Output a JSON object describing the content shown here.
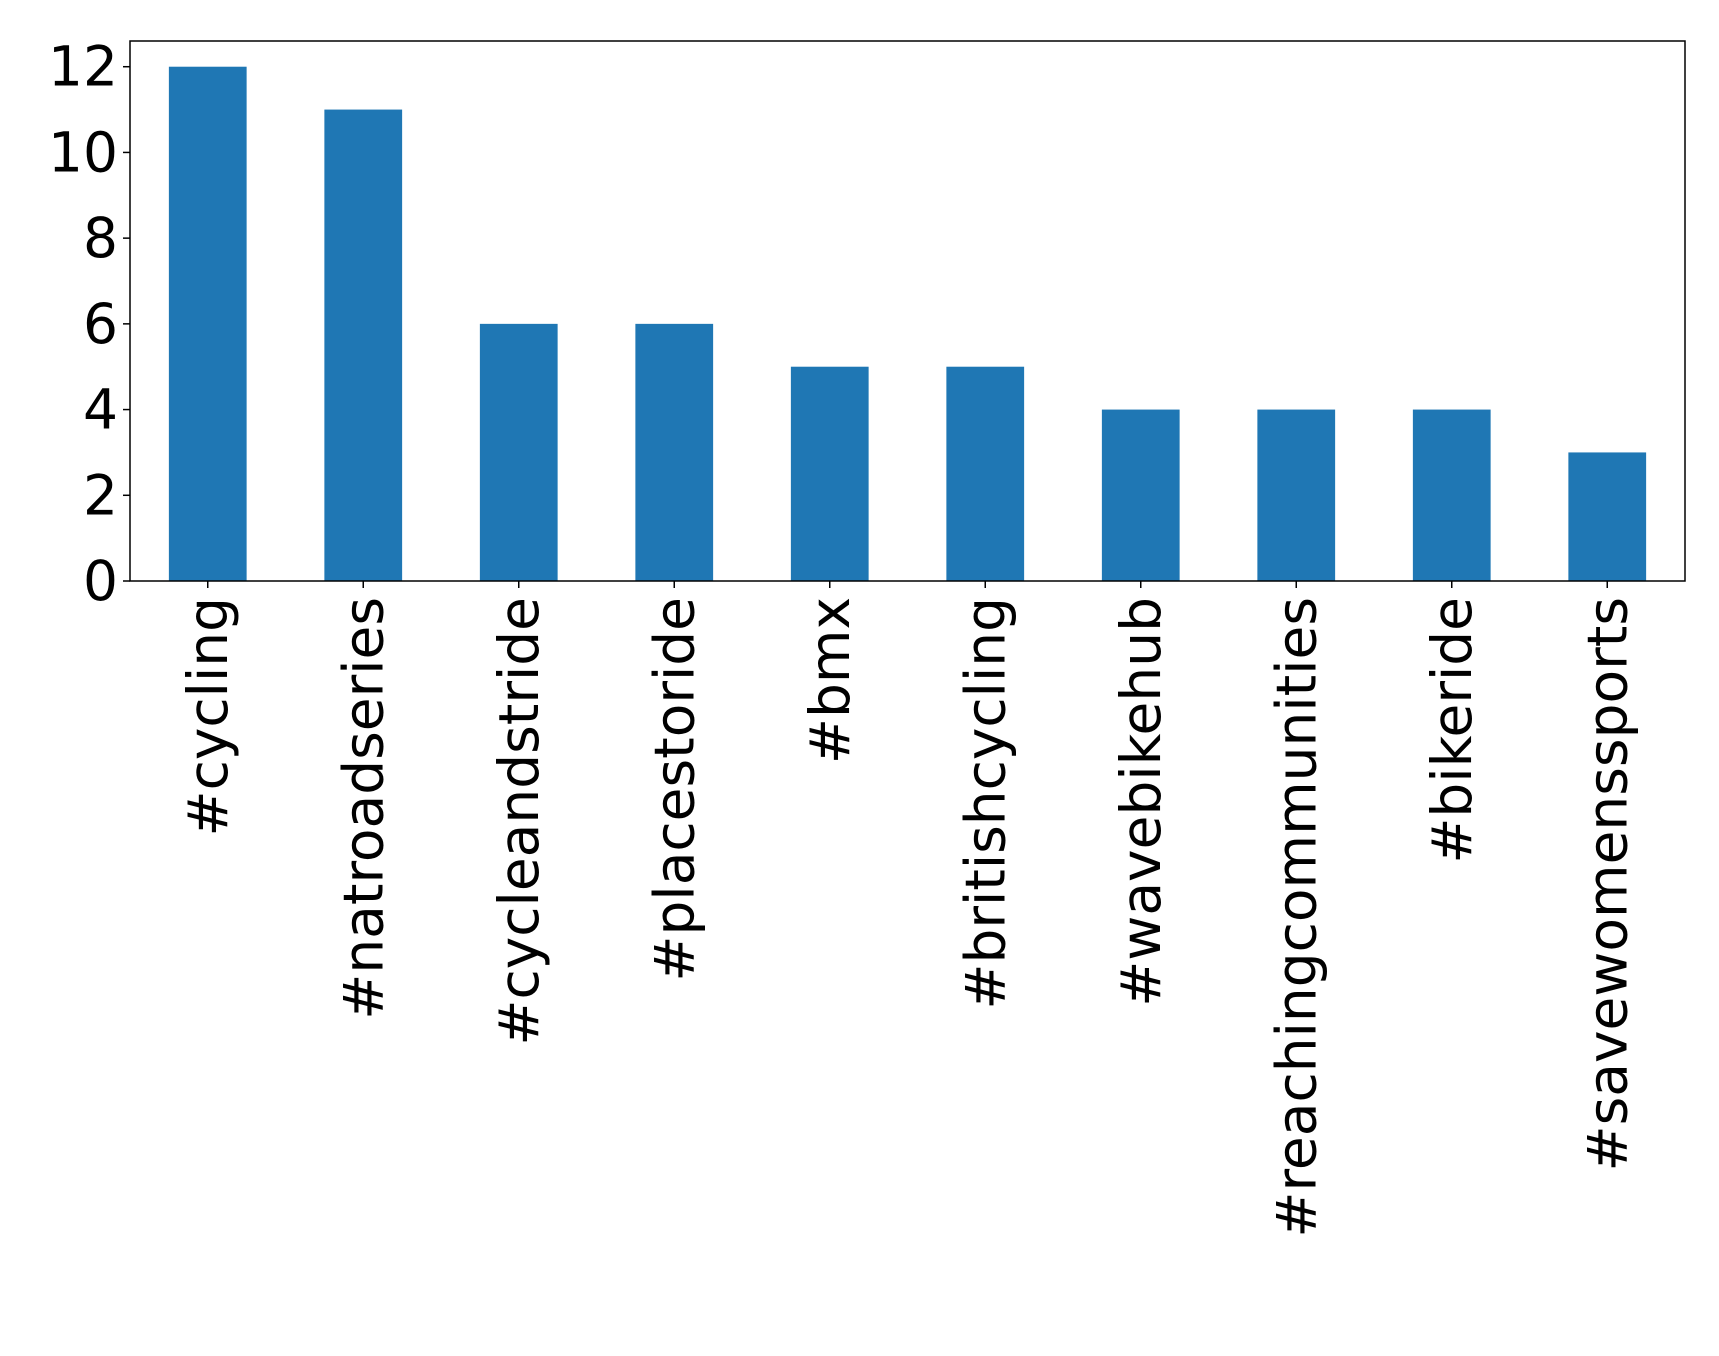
{
  "chart_data": {
    "type": "bar",
    "title": "",
    "xlabel": "",
    "ylabel": "",
    "categories": [
      "#cycling",
      "#natroadseries",
      "#cycleandstride",
      "#placestoride",
      "#bmx",
      "#britishcycling",
      "#wavebikehub",
      "#reachingcommunities",
      "#bikeride",
      "#savewomenssports"
    ],
    "values": [
      12,
      11,
      6,
      6,
      5,
      5,
      4,
      4,
      4,
      3
    ],
    "ylim": [
      0,
      12.6
    ],
    "yticks": [
      0,
      2,
      4,
      6,
      8,
      10,
      12
    ],
    "grid": false,
    "legend": "none",
    "bar_color": "#1f77b4"
  }
}
